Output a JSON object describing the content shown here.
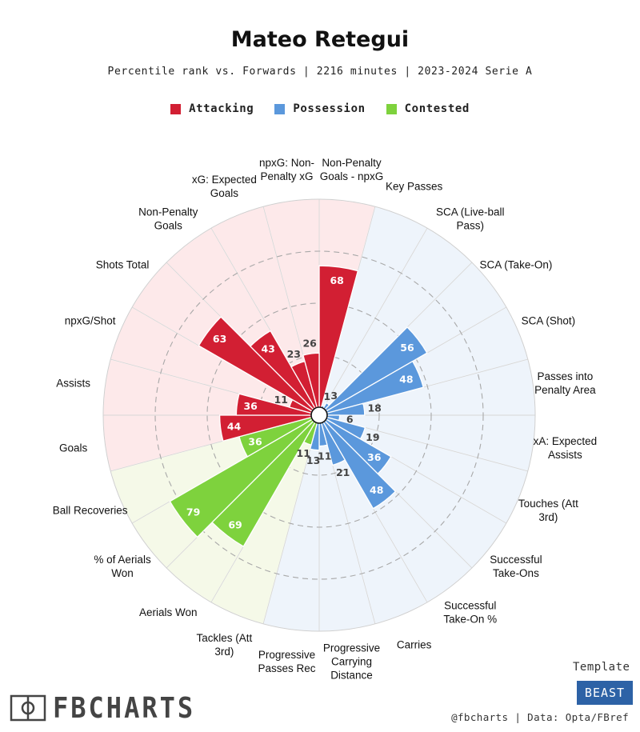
{
  "header": {
    "title": "Mateo Retegui",
    "subtitle": "Percentile rank vs. Forwards | 2216 minutes | 2023-2024 Serie A"
  },
  "legend": [
    {
      "label": "Attacking",
      "color": "#d21f33"
    },
    {
      "label": "Possession",
      "color": "#5b98dc"
    },
    {
      "label": "Contested",
      "color": "#7ed23d"
    }
  ],
  "chart_data": {
    "type": "polar-bar",
    "title": "Mateo Retegui",
    "rlim": [
      0,
      100
    ],
    "grid": true,
    "categories": [
      {
        "label": "Non-Penalty Goals - npxG",
        "group": "Attacking",
        "value": 68
      },
      {
        "label": "Key Passes",
        "group": "Possession",
        "value": 1
      },
      {
        "label": "SCA (Live-ball Pass)",
        "group": "Possession",
        "value": 3
      },
      {
        "label": "SCA (Take-On)",
        "group": "Possession",
        "value": 56
      },
      {
        "label": "SCA (Shot)",
        "group": "Possession",
        "value": 48
      },
      {
        "label": "Passes into Penalty Area",
        "group": "Possession",
        "value": 18
      },
      {
        "label": "xA: Expected Assists",
        "group": "Possession",
        "value": 6
      },
      {
        "label": "Touches (Att 3rd)",
        "group": "Possession",
        "value": 19
      },
      {
        "label": "Successful Take-Ons",
        "group": "Possession",
        "value": 36
      },
      {
        "label": "Successful Take-On %",
        "group": "Possession",
        "value": 48
      },
      {
        "label": "Carries",
        "group": "Possession",
        "value": 21
      },
      {
        "label": "Progressive Carrying Distance",
        "group": "Possession",
        "value": 11
      },
      {
        "label": "Progressive Passes Rec",
        "group": "Possession",
        "value": 13
      },
      {
        "label": "Tackles (Att 3rd)",
        "group": "Contested",
        "value": 11
      },
      {
        "label": "Aerials Won",
        "group": "Contested",
        "value": 69
      },
      {
        "label": "% of Aerials Won",
        "group": "Contested",
        "value": 79
      },
      {
        "label": "Ball Recoveries",
        "group": "Contested",
        "value": 36
      },
      {
        "label": "Goals",
        "group": "Attacking",
        "value": 44
      },
      {
        "label": "Assists",
        "group": "Attacking",
        "value": 36
      },
      {
        "label": "npxG/Shot",
        "group": "Attacking",
        "value": 11
      },
      {
        "label": "Shots Total",
        "group": "Attacking",
        "value": 63
      },
      {
        "label": "Non-Penalty Goals",
        "group": "Attacking",
        "value": 43
      },
      {
        "label": "xG: Expected Goals",
        "group": "Attacking",
        "value": 23
      },
      {
        "label": "npxG: Non-Penalty xG",
        "group": "Attacking",
        "value": 26
      }
    ]
  },
  "colors": {
    "attacking_bar": "#d21f33",
    "possession_bar": "#5b98dc",
    "contested_bar": "#7ed23d",
    "attacking_bg": "#fde9ea",
    "possession_bg": "#eef4fb",
    "contested_bg": "#f5f9e8"
  },
  "branding": {
    "logo_text": "FBCHARTS",
    "template_label": "Template",
    "template_name": "BEAST",
    "credit": "@fbcharts | Data: Opta/FBref"
  }
}
